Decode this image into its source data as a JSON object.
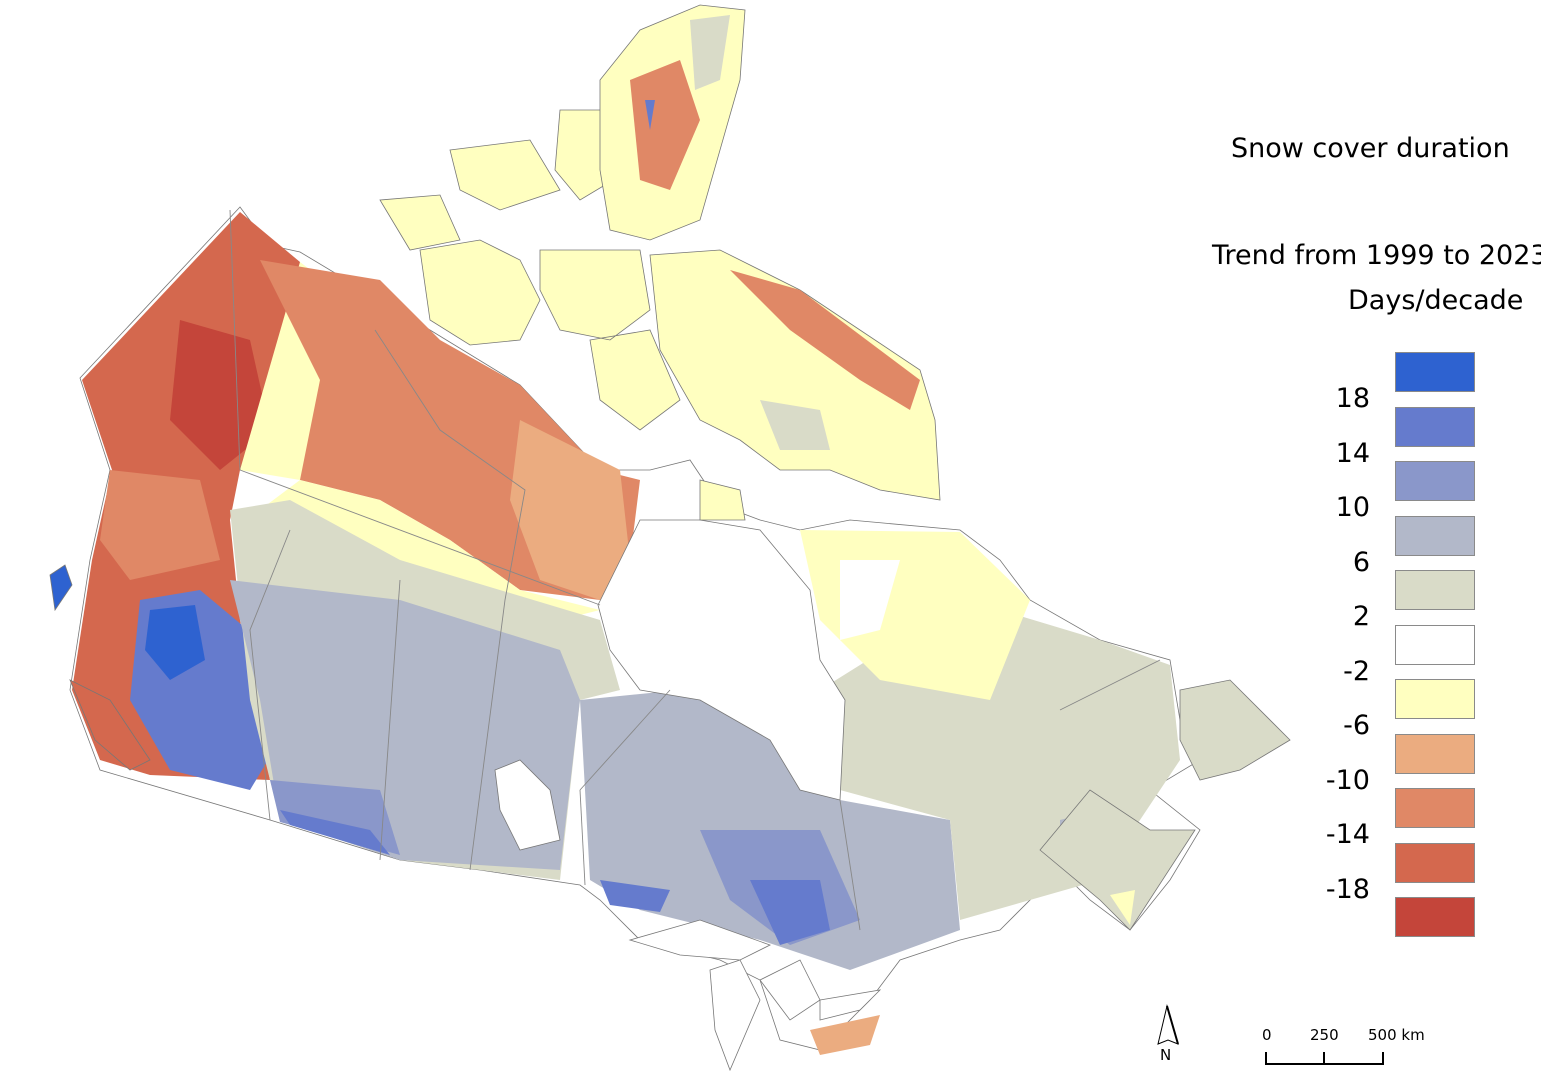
{
  "legend": {
    "title": "Snow cover duration",
    "subtitle": "Trend from 1999 to 2023",
    "unit": "Days/decade",
    "classes": [
      {
        "color": "#2e62d0"
      },
      {
        "color": "#657bcd"
      },
      {
        "color": "#8a97ca"
      },
      {
        "color": "#b2b8c9"
      },
      {
        "color": "#d9dbc8"
      },
      {
        "color": "#ffffff"
      },
      {
        "color": "#ffffc0"
      },
      {
        "color": "#ebac80"
      },
      {
        "color": "#e08866"
      },
      {
        "color": "#d4684e"
      },
      {
        "color": "#c4453a"
      }
    ],
    "breaks": [
      "18",
      "14",
      "10",
      "6",
      "2",
      "-2",
      "-6",
      "-10",
      "-14",
      "-18"
    ]
  },
  "north_arrow": {
    "label": "N"
  },
  "scale_bar": {
    "labels": [
      "0",
      "250",
      "500 km"
    ]
  }
}
